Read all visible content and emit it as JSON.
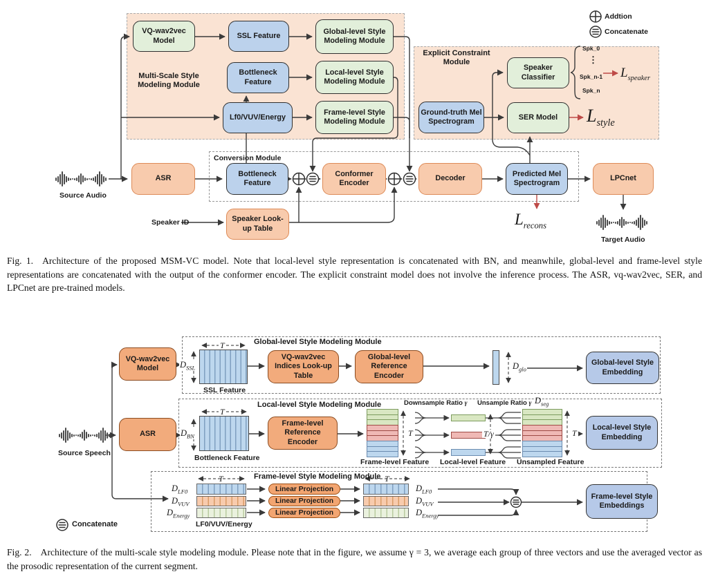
{
  "palette": {
    "peach_fill": "#FAE3D3",
    "orange_box": "#F8CBAD",
    "orange_border": "#DD8A57",
    "green_box": "#E2EFDA",
    "blue_box": "#BCD2EC",
    "orange2_box": "#F2AB7C",
    "blue2_box": "#B6C9E8",
    "loss_red": "#BE4B48"
  },
  "fig1": {
    "legend": {
      "addition_label": "Addtion",
      "concatenate_label": "Concatenate"
    },
    "msm": {
      "title": "Multi-Scale Style Modeling Module",
      "vq_wav2vec": "VQ-wav2vec Model",
      "ssl_feature": "SSL Feature",
      "global_module": "Global-level Style Modeling Module",
      "bottleneck_feature": "Bottleneck Feature",
      "local_module": "Local-level Style Modeling Module",
      "lf0_vuv_energy": "Lf0/VUV/Energy",
      "frame_module": "Frame-level Style Modeling Module"
    },
    "ecm": {
      "title": "Explicit Constraint Module",
      "ground_truth_mel": "Ground-truth Mel Spectrogram",
      "speaker_classifier": "Speaker Classifier",
      "ser_model": "SER Model",
      "spk_0": "Spk_0",
      "dots": "⋮",
      "spk_n1": "Spk_n-1",
      "spk_n": "Spk_n",
      "loss_speaker": {
        "base": "L",
        "sub": "speaker"
      },
      "loss_style": {
        "base": "L",
        "sub": "style"
      }
    },
    "conversion": {
      "title": "Conversion Module",
      "bottleneck_feature": "Bottleneck Feature",
      "conformer_encoder": "Conformer Encoder",
      "decoder": "Decoder",
      "predicted_mel": "Predicted Mel Spectrogram"
    },
    "asr": "ASR",
    "source_audio": "Source Audio",
    "speaker_id": "Speaker ID",
    "speaker_lookup": "Speaker Look-up Table",
    "lpcnet": "LPCnet",
    "target_audio": "Target Audio",
    "loss_recons": {
      "base": "L",
      "sub": "recons"
    },
    "caption": {
      "tag": "Fig. 1.",
      "text": "Architecture of the proposed MSM-VC model. Note that local-level style representation is concatenated with BN, and meanwhile, global-level and frame-level style representations are concatenated with the output of the conformer encoder. The explicit constraint model does not involve the inference process. The ASR, vq-wav2vec, SER, and LPCnet are pre-trained models."
    }
  },
  "fig2": {
    "global": {
      "title": "Global-level Style Modeling Module",
      "vq_wav2vec": "VQ-wav2vec Model",
      "d_ssl": {
        "base": "D",
        "sub": "SSL"
      },
      "t": "T",
      "ssl_feature": "SSL Feature",
      "lookup": "VQ-wav2vec Indices Look-up Table",
      "encoder": "Global-level Reference Encoder",
      "d_glo": {
        "base": "D",
        "sub": "glo"
      },
      "embedding": "Global-level Style Embedding"
    },
    "local": {
      "title": "Local-level Style Modeling Module",
      "asr": "ASR",
      "d_bn": {
        "base": "D",
        "sub": "BN"
      },
      "t": "T",
      "bottleneck_feature": "Bottleneck Feature",
      "encoder": "Frame-level Reference Encoder",
      "frame_feature": "Frame-level Feature",
      "downsample_ratio": "Downsample Ratio",
      "unsample_ratio": "Unsample Ratio",
      "gamma": "γ",
      "t_over_gamma": "T/",
      "local_feature": "Local-level Feature",
      "d_seg": {
        "base": "D",
        "sub": "seg"
      },
      "unsampled_feature": "Unsampled Feature",
      "embedding": "Local-level Style Embedding"
    },
    "frame": {
      "title": "Frame-level Style Modeling Module",
      "d_lf0": {
        "base": "D",
        "sub": "LF0"
      },
      "d_vuv": {
        "base": "D",
        "sub": "VUV"
      },
      "d_energy": {
        "base": "D",
        "sub": "Energy"
      },
      "t": "T",
      "linear_projection": "Linear Projection",
      "lf0_vuv_energy": "LF0/VUV/Energy",
      "embedding": "Frame-level Style Embeddings"
    },
    "source_speech": "Source Speech",
    "legend": {
      "concatenate_label": "Concatenate"
    },
    "caption": {
      "tag": "Fig. 2.",
      "text": "Architecture of the multi-scale style modeling module. Please note that in the figure, we assume γ = 3, we average each group of three vectors and use the averaged vector as the prosodic representation of the current segment."
    }
  }
}
